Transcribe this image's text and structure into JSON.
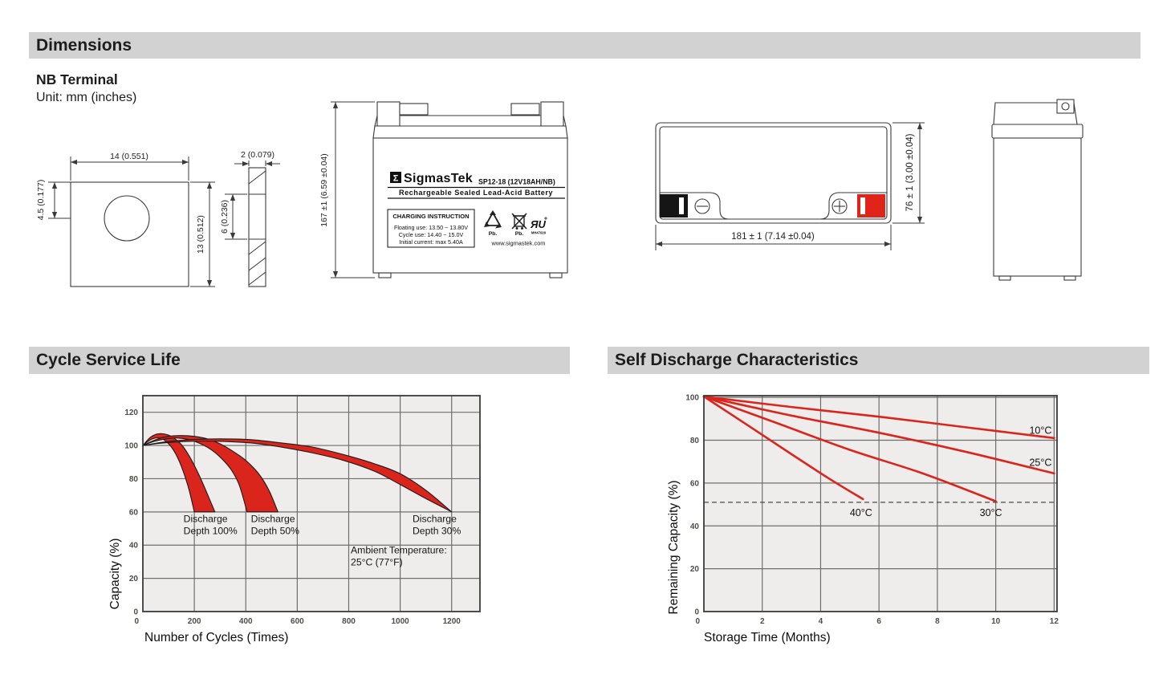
{
  "colors": {
    "bar_bg": "#d2d2d2",
    "red": "#da251d",
    "plot_bg": "#eeedec",
    "grid": "#6e6e6e",
    "border": "#3a3a3a",
    "tick_text": "#514b45"
  },
  "header": {
    "dimensions_title": "Dimensions",
    "terminal_type": "NB Terminal",
    "unit_note": "Unit: mm (inches)"
  },
  "sections": {
    "cycle_title": "Cycle Service Life",
    "self_discharge_title": "Self Discharge Characteristics"
  },
  "terminal_front": {
    "width": "14 (0.551)",
    "height": "13 (0.512)",
    "hole_offset": "4.5 (0.177)"
  },
  "terminal_side": {
    "thickness": "2 (0.079)",
    "slot_height": "6 (0.236)"
  },
  "battery_front": {
    "height_dim": "167 ±1 (6.59 ±0.04)",
    "logo_symbol": "Σ",
    "brand": "SigmasTek",
    "model": "SP12-18 (12V18AH/NB)",
    "type_line": "Rechargeable Sealed Lead-Acid Battery",
    "charging_title": "CHARGING INSTRUCTION",
    "charging_line1": "Floating use: 13.50 ~ 13.80V",
    "charging_line2": "Cycle use: 14.40 ~ 15.0V",
    "charging_line3": "Initial current: max 5.40A",
    "pb_recycle": "Pb.",
    "pb_bin": "Pb.",
    "ul_mark": "ЯU",
    "ul_code": "MH47929",
    "website": "www.sigmastek.com"
  },
  "battery_top": {
    "width_dim": "181 ± 1 (7.14 ±0.04)",
    "depth_dim": "76 ± 1 (3.00 ±0.04)"
  },
  "chart_data": [
    {
      "type": "area",
      "title": "Cycle Service Life",
      "xlabel": "Number of Cycles (Times)",
      "ylabel": "Capacity (%)",
      "xlim": [
        0,
        1310
      ],
      "ylim": [
        0,
        130
      ],
      "x_ticks": [
        0,
        200,
        400,
        600,
        800,
        1000,
        1200
      ],
      "y_ticks": [
        0,
        20,
        40,
        60,
        80,
        100,
        120
      ],
      "grid": true,
      "legend_position": "none",
      "bands": [
        {
          "name": "Discharge Depth 100%",
          "upper": [
            [
              0,
              100
            ],
            [
              30,
              105
            ],
            [
              60,
              107
            ],
            [
              95,
              106.5
            ],
            [
              125,
              104
            ],
            [
              150,
              100.5
            ],
            [
              175,
              95
            ],
            [
              200,
              88
            ],
            [
              225,
              80
            ],
            [
              250,
              71
            ],
            [
              280,
              60
            ]
          ],
          "lower": [
            [
              0,
              100
            ],
            [
              25,
              103
            ],
            [
              50,
              104.5
            ],
            [
              75,
              104
            ],
            [
              100,
              101
            ],
            [
              120,
              97
            ],
            [
              140,
              91
            ],
            [
              160,
              83
            ],
            [
              180,
              73
            ],
            [
              200,
              60
            ]
          ]
        },
        {
          "name": "Discharge Depth 50%",
          "upper": [
            [
              0,
              100
            ],
            [
              50,
              103.5
            ],
            [
              100,
              105.5
            ],
            [
              150,
              106
            ],
            [
              200,
              105.5
            ],
            [
              250,
              104
            ],
            [
              300,
              101
            ],
            [
              350,
              96.5
            ],
            [
              400,
              91
            ],
            [
              450,
              83
            ],
            [
              490,
              73
            ],
            [
              525,
              60
            ]
          ],
          "lower": [
            [
              0,
              100
            ],
            [
              45,
              102.5
            ],
            [
              90,
              104
            ],
            [
              135,
              104.5
            ],
            [
              180,
              103.5
            ],
            [
              225,
              101
            ],
            [
              270,
              97
            ],
            [
              310,
              91.5
            ],
            [
              345,
              85
            ],
            [
              375,
              76
            ],
            [
              405,
              60
            ]
          ]
        },
        {
          "name": "Discharge Depth 30%",
          "upper": [
            [
              0,
              100
            ],
            [
              80,
              102
            ],
            [
              180,
              103.5
            ],
            [
              300,
              104
            ],
            [
              420,
              103.5
            ],
            [
              540,
              101.5
            ],
            [
              660,
              99
            ],
            [
              780,
              94.5
            ],
            [
              900,
              89
            ],
            [
              1000,
              83
            ],
            [
              1100,
              73
            ],
            [
              1200,
              60
            ]
          ],
          "lower": [
            [
              0,
              100
            ],
            [
              80,
              101.5
            ],
            [
              180,
              102.5
            ],
            [
              300,
              102.5
            ],
            [
              420,
              101.5
            ],
            [
              540,
              99
            ],
            [
              660,
              95.5
            ],
            [
              780,
              91
            ],
            [
              900,
              84.5
            ],
            [
              1000,
              76.5
            ],
            [
              1100,
              68
            ],
            [
              1200,
              60
            ]
          ]
        }
      ],
      "annotations": [
        {
          "lines": [
            "Discharge",
            "Depth 100%"
          ],
          "x": 158,
          "y": 54
        },
        {
          "lines": [
            "Discharge",
            "Depth 50%"
          ],
          "x": 420,
          "y": 54
        },
        {
          "lines": [
            "Discharge",
            "Depth 30%"
          ],
          "x": 1048,
          "y": 54
        },
        {
          "lines": [
            "Ambient Temperature:",
            "25°C (77°F)"
          ],
          "x": 808,
          "y": 35
        }
      ]
    },
    {
      "type": "line",
      "title": "Self Discharge Characteristics",
      "xlabel": "Storage Time (Months)",
      "ylabel": "Remaining Capacity (%)",
      "xlim": [
        0,
        12.1
      ],
      "ylim": [
        0,
        100.8
      ],
      "x_ticks": [
        0,
        2,
        4,
        6,
        8,
        10,
        12
      ],
      "y_ticks": [
        0,
        20,
        40,
        60,
        80,
        100
      ],
      "grid": true,
      "dashed_line_y": 51,
      "series": [
        {
          "name": "10°C",
          "points": [
            [
              0,
              100.4
            ],
            [
              3,
              95.5
            ],
            [
              6,
              91
            ],
            [
              9,
              86
            ],
            [
              12,
              81
            ]
          ],
          "label_x": 11.15,
          "label_y": 83
        },
        {
          "name": "25°C",
          "points": [
            [
              0,
              100.4
            ],
            [
              3,
              91.5
            ],
            [
              6,
              83.5
            ],
            [
              9,
              74.5
            ],
            [
              12,
              64.5
            ]
          ],
          "label_x": 11.15,
          "label_y": 68
        },
        {
          "name": "30°C",
          "points": [
            [
              0,
              100.4
            ],
            [
              2.5,
              88
            ],
            [
              5,
              75.5
            ],
            [
              7.5,
              64.5
            ],
            [
              10,
              51.5
            ]
          ],
          "label_x": 9.45,
          "label_y": 44.5
        },
        {
          "name": "40°C",
          "points": [
            [
              0,
              100.4
            ],
            [
              1.5,
              87
            ],
            [
              3,
              73.5
            ],
            [
              4.3,
              62
            ],
            [
              5.45,
              52.5
            ]
          ],
          "label_x": 5.0,
          "label_y": 44.5
        }
      ]
    }
  ]
}
